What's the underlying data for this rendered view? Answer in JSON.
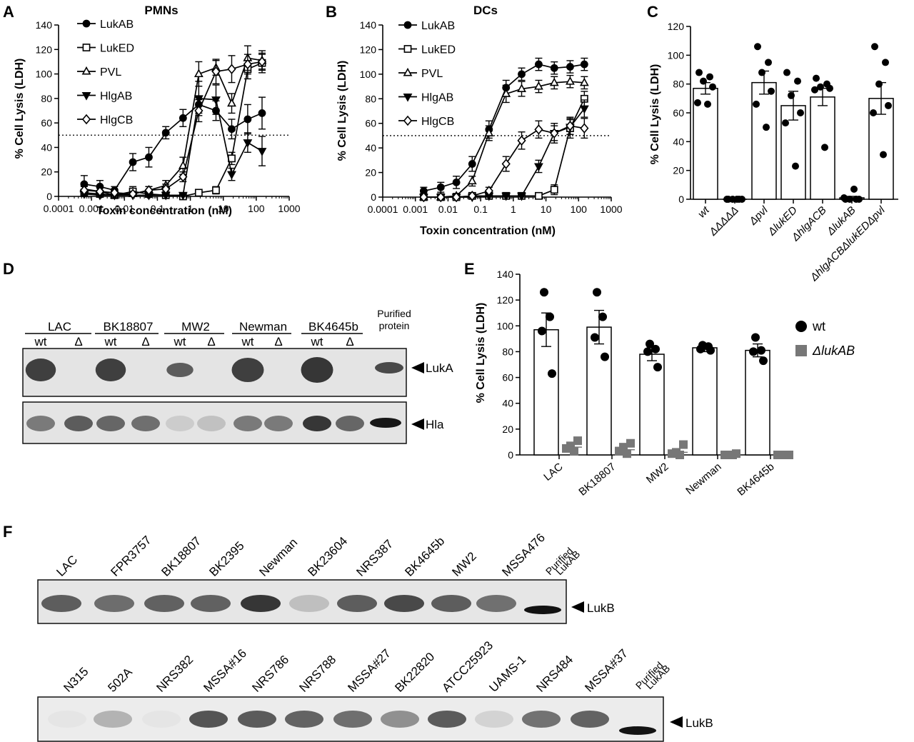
{
  "panels": {
    "A": {
      "letter": "A",
      "title": "PMNs",
      "xlabel": "Toxin concentration (nM)",
      "ylabel": "% Cell Lysis (LDH)",
      "xticks": [
        "0.0001",
        "0.001",
        "0.01",
        "0.1",
        "1",
        "10",
        "100",
        "1000"
      ],
      "yticks": [
        "0",
        "20",
        "40",
        "60",
        "80",
        "100",
        "120",
        "140"
      ]
    },
    "B": {
      "letter": "B",
      "title": "DCs",
      "xlabel": "Toxin concentration (nM)",
      "ylabel": "% Cell Lysis (LDH)",
      "xticks": [
        "0.0001",
        "0.001",
        "0.01",
        "0.1",
        "1",
        "10",
        "100",
        "1000"
      ],
      "yticks": [
        "0",
        "20",
        "40",
        "60",
        "80",
        "100",
        "120",
        "140"
      ]
    },
    "C": {
      "letter": "C",
      "ylabel": "% Cell Lysis (LDH)",
      "yticks": [
        "0",
        "20",
        "40",
        "60",
        "80",
        "100",
        "120"
      ],
      "categories": [
        "wt",
        "ΔΔΔΔΔ",
        "Δpvl",
        "ΔlukED",
        "ΔhlgACB",
        "ΔlukAB",
        "ΔhlgACBΔlukEDΔpvl"
      ]
    },
    "D": {
      "letter": "D",
      "strains": [
        "LAC",
        "BK18807",
        "MW2",
        "Newman",
        "BK4645b"
      ],
      "lane_wt": "wt",
      "lane_delta": "Δ",
      "purified_label": [
        "Purified",
        "protein"
      ],
      "blot1_label": "LukA",
      "blot2_label": "Hla"
    },
    "E": {
      "letter": "E",
      "ylabel": "% Cell Lysis (LDH)",
      "yticks": [
        "0",
        "20",
        "40",
        "60",
        "80",
        "100",
        "120",
        "140"
      ],
      "categories": [
        "LAC",
        "BK18807",
        "MW2",
        "Newman",
        "BK4645b"
      ],
      "legend_wt": "wt",
      "legend_ko": "ΔlukAB"
    },
    "F": {
      "letter": "F",
      "row1_lanes": [
        "LAC",
        "FPR3757",
        "BK18807",
        "BK2395",
        "Newman",
        "BK23604",
        "NRS387",
        "BK4645b",
        "MW2",
        "MSSA476"
      ],
      "row2_lanes": [
        "N315",
        "502A",
        "NRS382",
        "MSSA#16",
        "NRS786",
        "NRS788",
        "MSSA#27",
        "BK22820",
        "ATCC25923",
        "UAMS-1",
        "NRS484",
        "MSSA#37"
      ],
      "purified_label": [
        "Purified",
        "LukAB"
      ],
      "blot_label": "LukB"
    }
  },
  "chart_data": [
    {
      "id": "A",
      "type": "line",
      "title": "PMNs",
      "xlabel": "Toxin concentration (nM)",
      "ylabel": "% Cell Lysis (LDH)",
      "xscale": "log",
      "xlim": [
        0.0001,
        1000
      ],
      "ylim": [
        0,
        140
      ],
      "threshold": 50,
      "series": [
        {
          "name": "LukAB",
          "marker": "circle-filled",
          "x": [
            0.0006,
            0.0018,
            0.005,
            0.018,
            0.055,
            0.18,
            0.6,
            1.8,
            6,
            18,
            55,
            150
          ],
          "y": [
            10,
            8,
            5,
            28,
            32,
            52,
            64,
            75,
            70,
            55,
            63,
            68
          ],
          "err": [
            7,
            5,
            3,
            7,
            8,
            5,
            7,
            7,
            8,
            8,
            12,
            13
          ]
        },
        {
          "name": "LukED",
          "marker": "square-open",
          "x": [
            0.0006,
            0.0018,
            0.005,
            0.018,
            0.055,
            0.18,
            0.6,
            1.8,
            6,
            18,
            55,
            150
          ],
          "y": [
            3,
            2,
            1,
            4,
            2,
            1,
            0,
            3,
            5,
            31,
            104,
            109
          ],
          "err": [
            5,
            3,
            3,
            4,
            2,
            1,
            1,
            2,
            3,
            5,
            8,
            8
          ]
        },
        {
          "name": "PVL",
          "marker": "triangle-up-open",
          "x": [
            0.0006,
            0.0018,
            0.005,
            0.018,
            0.055,
            0.18,
            0.6,
            1.8,
            6,
            18,
            55,
            150
          ],
          "y": [
            6,
            4,
            1,
            2,
            5,
            9,
            25,
            100,
            105,
            76,
            113,
            111
          ],
          "err": [
            5,
            3,
            2,
            2,
            3,
            4,
            7,
            10,
            6,
            8,
            10,
            8
          ]
        },
        {
          "name": "HlgAB",
          "marker": "triangle-down-filled",
          "x": [
            0.0006,
            0.0018,
            0.005,
            0.018,
            0.055,
            0.18,
            0.6,
            1.8,
            6,
            18,
            55,
            150
          ],
          "y": [
            2,
            1,
            1,
            1,
            1,
            1,
            1,
            80,
            79,
            18,
            44,
            37
          ],
          "err": [
            3,
            2,
            2,
            2,
            1,
            1,
            2,
            14,
            12,
            5,
            8,
            12
          ]
        },
        {
          "name": "HlgCB",
          "marker": "diamond-open",
          "x": [
            0.0006,
            0.0018,
            0.005,
            0.018,
            0.055,
            0.18,
            0.6,
            1.8,
            6,
            18,
            55,
            150
          ],
          "y": [
            5,
            4,
            3,
            2,
            5,
            6,
            16,
            70,
            102,
            104,
            108,
            110
          ],
          "err": [
            4,
            3,
            2,
            2,
            3,
            4,
            4,
            9,
            10,
            11,
            8,
            6
          ]
        }
      ]
    },
    {
      "id": "B",
      "type": "line",
      "title": "DCs",
      "xlabel": "Toxin concentration (nM)",
      "ylabel": "% Cell Lysis (LDH)",
      "xscale": "log",
      "xlim": [
        0.0001,
        1000
      ],
      "ylim": [
        0,
        140
      ],
      "threshold": 50,
      "series": [
        {
          "name": "LukAB",
          "marker": "circle-filled",
          "x": [
            0.0018,
            0.006,
            0.018,
            0.055,
            0.18,
            0.6,
            1.8,
            6,
            18,
            55,
            150
          ],
          "y": [
            5,
            8,
            12,
            27,
            55,
            89,
            100,
            108,
            105,
            106,
            108
          ],
          "err": [
            3,
            4,
            5,
            6,
            7,
            6,
            5,
            5,
            5,
            5,
            5
          ]
        },
        {
          "name": "LukED",
          "marker": "square-open",
          "x": [
            0.0018,
            0.006,
            0.018,
            0.055,
            0.18,
            0.6,
            1.8,
            6,
            18,
            55,
            150
          ],
          "y": [
            0,
            0,
            0,
            1,
            1,
            1,
            1,
            1,
            6,
            56,
            80
          ],
          "err": [
            1,
            1,
            1,
            1,
            1,
            1,
            1,
            2,
            4,
            8,
            6
          ]
        },
        {
          "name": "PVL",
          "marker": "triangle-up-open",
          "x": [
            0.0018,
            0.006,
            0.018,
            0.055,
            0.18,
            0.6,
            1.8,
            6,
            18,
            55,
            150
          ],
          "y": [
            0,
            0,
            1,
            13,
            52,
            84,
            88,
            90,
            93,
            94,
            93
          ],
          "err": [
            1,
            1,
            2,
            4,
            6,
            7,
            6,
            5,
            5,
            5,
            5
          ]
        },
        {
          "name": "HlgAB",
          "marker": "triangle-down-filled",
          "x": [
            0.0018,
            0.006,
            0.018,
            0.055,
            0.18,
            0.6,
            1.8,
            6,
            18,
            55,
            150
          ],
          "y": [
            0,
            0,
            0,
            0,
            1,
            1,
            1,
            25,
            52,
            57,
            72
          ],
          "err": [
            1,
            1,
            1,
            1,
            1,
            1,
            1,
            5,
            6,
            6,
            7
          ]
        },
        {
          "name": "HlgCB",
          "marker": "diamond-open",
          "x": [
            0.0018,
            0.006,
            0.018,
            0.055,
            0.18,
            0.6,
            1.8,
            6,
            18,
            55,
            150
          ],
          "y": [
            0,
            0,
            0,
            1,
            5,
            27,
            46,
            55,
            52,
            58,
            56
          ],
          "err": [
            1,
            1,
            1,
            1,
            3,
            6,
            7,
            7,
            8,
            7,
            8
          ]
        }
      ]
    },
    {
      "id": "C",
      "type": "bar",
      "ylabel": "% Cell Lysis (LDH)",
      "ylim": [
        0,
        120
      ],
      "categories": [
        "wt",
        "ΔΔΔΔΔ",
        "Δpvl",
        "ΔlukED",
        "ΔhlgACB",
        "ΔlukAB",
        "ΔhlgACBΔlukEDΔpvl"
      ],
      "values": [
        77,
        0,
        81,
        65,
        71,
        1,
        70
      ],
      "err": [
        4,
        0,
        8,
        10,
        6,
        1,
        11
      ],
      "points": [
        [
          88,
          85,
          82,
          78,
          67,
          66
        ],
        [
          0,
          0,
          0,
          0,
          0,
          0
        ],
        [
          106,
          95,
          88,
          75,
          66,
          50
        ],
        [
          88,
          82,
          72,
          60,
          53,
          23
        ],
        [
          84,
          80,
          78,
          77,
          76,
          36
        ],
        [
          0,
          0,
          0,
          0,
          1,
          7
        ],
        [
          106,
          95,
          80,
          65,
          60,
          31
        ]
      ]
    },
    {
      "id": "E",
      "type": "bar",
      "ylabel": "% Cell Lysis (LDH)",
      "ylim": [
        0,
        140
      ],
      "categories": [
        "LAC",
        "BK18807",
        "MW2",
        "Newman",
        "BK4645b"
      ],
      "series": [
        {
          "name": "wt",
          "values": [
            97,
            99,
            78,
            83,
            81
          ],
          "err": [
            13,
            13,
            5,
            3,
            5
          ],
          "points": [
            [
              126,
              107,
              96,
              63
            ],
            [
              126,
              107,
              91,
              76
            ],
            [
              86,
              82,
              80,
              68
            ],
            [
              85,
              84,
              82,
              81
            ],
            [
              91,
              81,
              80,
              73
            ]
          ]
        },
        {
          "name": "ΔlukAB",
          "values": [
            6,
            4,
            2,
            0,
            0
          ],
          "err": [
            2,
            2,
            1,
            0.5,
            0.5
          ],
          "points": [
            [
              11,
              7,
              5,
              3
            ],
            [
              9,
              6,
              3,
              1
            ],
            [
              8,
              2,
              1,
              0
            ],
            [
              1,
              0,
              0,
              0
            ],
            [
              0,
              0,
              0,
              0
            ]
          ]
        }
      ]
    }
  ]
}
